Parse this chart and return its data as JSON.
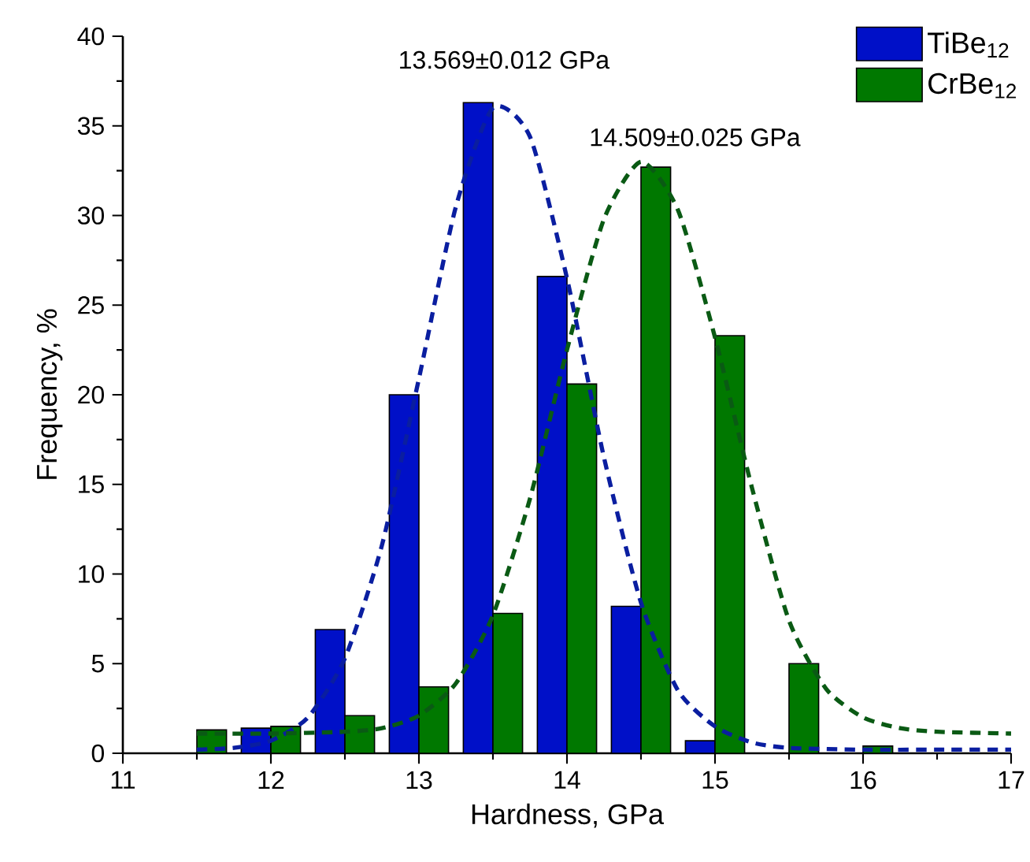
{
  "chart_data": {
    "type": "bar",
    "xlabel": "Hardness, GPa",
    "ylabel": "Frequency, %",
    "xlim": [
      11,
      17
    ],
    "ylim": [
      0,
      40
    ],
    "xticks": [
      11,
      12,
      13,
      14,
      15,
      16,
      17
    ],
    "yticks": [
      0,
      5,
      10,
      15,
      20,
      25,
      30,
      35,
      40
    ],
    "legend": "top right",
    "grid": false,
    "annotations": [
      "13.569±0.012 GPa",
      "14.509±0.025 GPa"
    ],
    "series": [
      {
        "name": "TiBe$_{12}$",
        "color": "#0010c8",
        "x": [
          11.9,
          12.4,
          12.9,
          13.4,
          13.9,
          14.4,
          14.9
        ],
        "values": [
          1.4,
          6.9,
          20.0,
          36.3,
          26.6,
          8.2,
          0.7
        ]
      },
      {
        "name": "CrBe$_{12}$",
        "color": "#007800",
        "x": [
          11.6,
          12.1,
          12.6,
          13.1,
          13.6,
          14.1,
          14.6,
          15.1,
          15.6,
          16.1
        ],
        "values": [
          1.3,
          1.5,
          2.1,
          3.7,
          7.8,
          20.6,
          32.7,
          23.3,
          5.0,
          0.4
        ]
      },
      {
        "type": "line",
        "color": "#0a1ea0",
        "line_style": "dashed",
        "marker": "none",
        "x": [
          11.5,
          11.75,
          12.0,
          12.25,
          12.5,
          12.75,
          13.0,
          13.25,
          13.5,
          13.75,
          14.0,
          14.25,
          14.5,
          14.75,
          15.0,
          15.25,
          15.5,
          16.0,
          16.5,
          17.0
        ],
        "values": [
          0.2,
          0.3,
          0.7,
          2.0,
          5.3,
          11.6,
          20.9,
          30.5,
          36.0,
          34.4,
          26.5,
          16.5,
          8.4,
          3.5,
          1.5,
          0.6,
          0.3,
          0.2,
          0.2,
          0.2
        ]
      },
      {
        "type": "line",
        "color": "#0a5a14",
        "line_style": "dashed",
        "marker": "none",
        "x": [
          11.5,
          12.0,
          12.5,
          12.75,
          13.0,
          13.25,
          13.5,
          13.75,
          14.0,
          14.25,
          14.5,
          14.75,
          15.0,
          15.25,
          15.5,
          15.75,
          16.0,
          16.25,
          16.5,
          17.0
        ],
        "values": [
          1.1,
          1.1,
          1.2,
          1.4,
          2.1,
          3.9,
          7.7,
          14.2,
          22.5,
          29.8,
          33.0,
          30.3,
          23.2,
          14.8,
          7.4,
          3.6,
          2.0,
          1.4,
          1.2,
          1.1
        ]
      }
    ]
  }
}
